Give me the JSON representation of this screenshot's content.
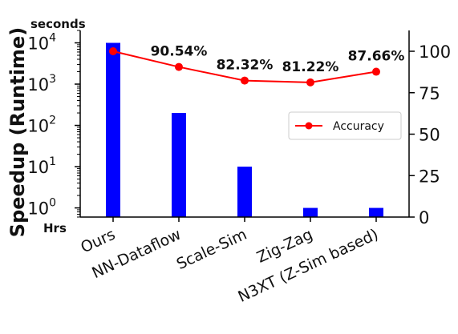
{
  "chart_data": {
    "type": "bar+line",
    "categories": [
      "Ours",
      "NN-Dataflow",
      "Scale-Sim",
      "Zig-Zag",
      "N3XT (Z-Sim based)"
    ],
    "left_axis": {
      "label": "Speedup (Runtime)",
      "scale": "log",
      "range": [
        0.6,
        20000
      ],
      "ticks": [
        1,
        10,
        100,
        1000,
        10000
      ],
      "tick_labels": [
        {
          "base": "10",
          "exp": "0"
        },
        {
          "base": "10",
          "exp": "1"
        },
        {
          "base": "10",
          "exp": "2"
        },
        {
          "base": "10",
          "exp": "3"
        },
        {
          "base": "10",
          "exp": "4"
        }
      ],
      "top_unit": "seconds",
      "bottom_unit": "Hrs"
    },
    "right_axis": {
      "scale": "linear",
      "range": [
        0,
        100
      ],
      "ticks": [
        0,
        25,
        50,
        75,
        100
      ],
      "tick_labels": [
        "0",
        "25",
        "50",
        "75",
        "100"
      ]
    },
    "series": [
      {
        "name": "",
        "kind": "bar",
        "axis": "left",
        "color": "#0000ff",
        "values": [
          10000,
          200,
          10,
          1,
          1
        ]
      },
      {
        "name": "Accuracy",
        "kind": "line",
        "axis": "right",
        "color": "#ff0000",
        "values": [
          100,
          90.54,
          82.32,
          81.22,
          87.66
        ],
        "point_labels": [
          "",
          "90.54%",
          "82.32%",
          "81.22%",
          "87.66%"
        ]
      }
    ],
    "legend": {
      "position": "center-right",
      "entries": [
        "Accuracy"
      ]
    },
    "grid": false
  }
}
